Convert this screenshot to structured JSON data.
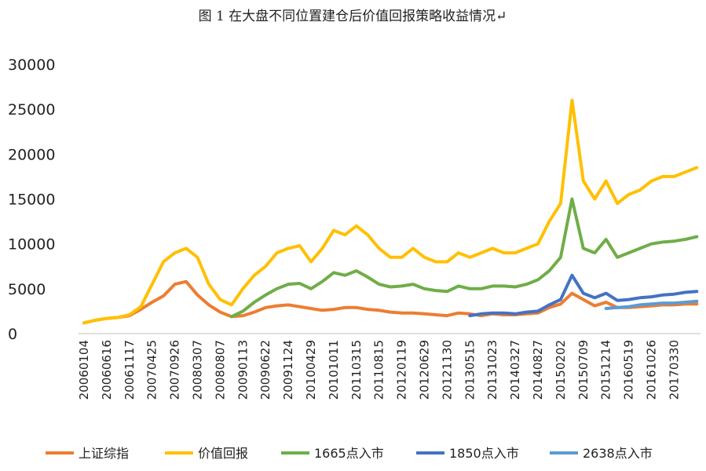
{
  "chart_data": {
    "type": "line",
    "title": "图 1  在大盘不同位置建仓后价值回报策略收益情况↵",
    "categories": [
      "20060104",
      null,
      "20060616",
      null,
      "20061117",
      null,
      "20070425",
      null,
      "20070926",
      null,
      "20080307",
      null,
      "20080807",
      null,
      "20090113",
      null,
      "20090622",
      null,
      "20091124",
      null,
      "20100429",
      null,
      "20101011",
      null,
      "20110315",
      null,
      "20110815",
      null,
      "20120119",
      null,
      "20120629",
      null,
      "20121130",
      null,
      "20130515",
      null,
      "20131023",
      null,
      "20140327",
      null,
      "20140827",
      null,
      "20150202",
      null,
      "20150709",
      null,
      "20151214",
      null,
      "20160519",
      null,
      "20161026",
      null,
      "20170330",
      null,
      null
    ],
    "ylim": [
      0,
      30000
    ],
    "yticks": [
      0,
      5000,
      10000,
      15000,
      20000,
      25000,
      30000
    ],
    "grid": false,
    "series": [
      {
        "name": "上证综指",
        "color": "#ED7D31",
        "values": [
          1200,
          1500,
          1700,
          1800,
          2000,
          2700,
          3500,
          4200,
          5500,
          5800,
          4300,
          3200,
          2400,
          1900,
          2000,
          2400,
          2900,
          3100,
          3200,
          3000,
          2800,
          2600,
          2700,
          2900,
          2900,
          2700,
          2600,
          2400,
          2300,
          2300,
          2200,
          2100,
          2000,
          2300,
          2200,
          2000,
          2200,
          2100,
          2100,
          2200,
          2300,
          2900,
          3300,
          4500,
          3800,
          3100,
          3500,
          2900,
          2900,
          3000,
          3100,
          3200,
          3200,
          3300,
          3300
        ]
      },
      {
        "name": "价值回报",
        "color": "#FFC000",
        "values": [
          1200,
          1500,
          1700,
          1800,
          2100,
          3000,
          5500,
          8000,
          9000,
          9500,
          8500,
          5500,
          3800,
          3200,
          5000,
          6500,
          7500,
          9000,
          9500,
          9800,
          8000,
          9500,
          11500,
          11000,
          12000,
          11000,
          9500,
          8500,
          8500,
          9500,
          8500,
          8000,
          8000,
          9000,
          8500,
          9000,
          9500,
          9000,
          9000,
          9500,
          10000,
          12500,
          14500,
          26000,
          17000,
          15000,
          17000,
          14500,
          15500,
          16000,
          17000,
          17500,
          17500,
          18000,
          18500
        ]
      },
      {
        "name": "1665点入市",
        "color": "#70AD47",
        "values": [
          null,
          null,
          null,
          null,
          null,
          null,
          null,
          null,
          null,
          null,
          null,
          null,
          null,
          1900,
          2500,
          3500,
          4300,
          5000,
          5500,
          5600,
          5000,
          5800,
          6800,
          6500,
          7000,
          6300,
          5500,
          5200,
          5300,
          5500,
          5000,
          4800,
          4700,
          5300,
          5000,
          5000,
          5300,
          5300,
          5200,
          5500,
          6000,
          7000,
          8500,
          15000,
          9500,
          9000,
          10500,
          8500,
          9000,
          9500,
          10000,
          10200,
          10300,
          10500,
          10800
        ]
      },
      {
        "name": "1850点入市",
        "color": "#4472C4",
        "values": [
          null,
          null,
          null,
          null,
          null,
          null,
          null,
          null,
          null,
          null,
          null,
          null,
          null,
          null,
          null,
          null,
          null,
          null,
          null,
          null,
          null,
          null,
          null,
          null,
          null,
          null,
          null,
          null,
          null,
          null,
          null,
          null,
          null,
          null,
          2000,
          2200,
          2300,
          2300,
          2200,
          2400,
          2500,
          3200,
          3800,
          6500,
          4500,
          4000,
          4500,
          3700,
          3800,
          4000,
          4100,
          4300,
          4400,
          4600,
          4700
        ]
      },
      {
        "name": "2638点入市",
        "color": "#5B9BD5",
        "values": [
          null,
          null,
          null,
          null,
          null,
          null,
          null,
          null,
          null,
          null,
          null,
          null,
          null,
          null,
          null,
          null,
          null,
          null,
          null,
          null,
          null,
          null,
          null,
          null,
          null,
          null,
          null,
          null,
          null,
          null,
          null,
          null,
          null,
          null,
          null,
          null,
          null,
          null,
          null,
          null,
          null,
          null,
          null,
          null,
          null,
          null,
          2800,
          2900,
          3000,
          3200,
          3300,
          3400,
          3400,
          3500,
          3600
        ]
      }
    ]
  }
}
